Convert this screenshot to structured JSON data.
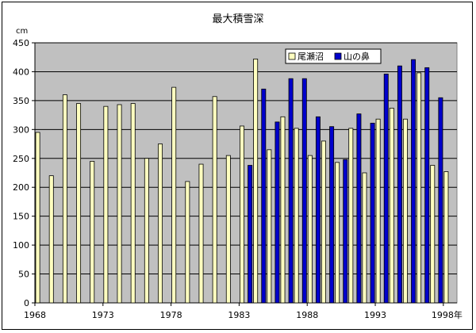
{
  "chart_data": {
    "type": "bar",
    "title": "最大積雪深",
    "ylabel": "cm",
    "xlabel": "",
    "x_unit_suffix": "年",
    "ylim": [
      0,
      450
    ],
    "yticks": [
      0,
      50,
      100,
      150,
      200,
      250,
      300,
      350,
      400,
      450
    ],
    "x_tick_labels": [
      "1968",
      "1973",
      "1978",
      "1983",
      "1988",
      "1993",
      "1998"
    ],
    "x_tick_label_last": "1998年",
    "categories": [
      1968,
      1969,
      1970,
      1971,
      1972,
      1973,
      1974,
      1975,
      1976,
      1977,
      1978,
      1979,
      1980,
      1981,
      1982,
      1983,
      1984,
      1985,
      1986,
      1987,
      1988,
      1989,
      1990,
      1991,
      1992,
      1993,
      1994,
      1995,
      1996,
      1997,
      1998
    ],
    "grid": true,
    "legend_position": "top-right",
    "plot_background": "#c0c0c0",
    "series": [
      {
        "name": "尾瀬沼",
        "color": "#ffffc0",
        "values": [
          295,
          220,
          360,
          345,
          245,
          340,
          343,
          345,
          250,
          275,
          373,
          210,
          240,
          357,
          255,
          306,
          422,
          265,
          322,
          302,
          255,
          280,
          243,
          302,
          225,
          318,
          337,
          318,
          398,
          238,
          227
        ]
      },
      {
        "name": "山の鼻",
        "color": "#0000cc",
        "values": [
          null,
          null,
          null,
          null,
          null,
          null,
          null,
          null,
          null,
          null,
          null,
          null,
          null,
          null,
          null,
          238,
          370,
          313,
          388,
          388,
          322,
          305,
          248,
          327,
          311,
          396,
          410,
          421,
          407,
          355,
          null
        ]
      }
    ]
  }
}
